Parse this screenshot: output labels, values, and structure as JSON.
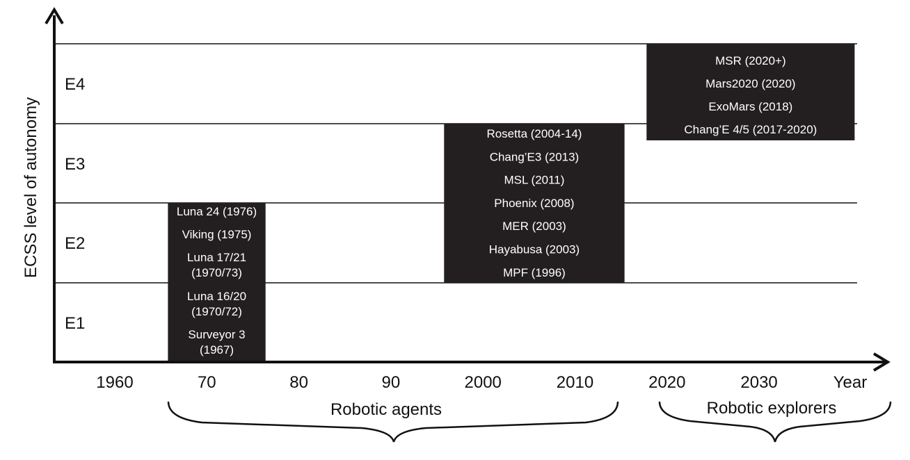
{
  "y_axis_title": "ECSS level of autonomy",
  "levels": [
    "E1",
    "E2",
    "E3",
    "E4"
  ],
  "x_axis": {
    "ticks": [
      "1960",
      "70",
      "80",
      "90",
      "2000",
      "2010",
      "2020",
      "2030"
    ],
    "end_label": "Year"
  },
  "groups": [
    {
      "label": "Robotic agents"
    },
    {
      "label": "Robotic explorers"
    }
  ],
  "blocks": [
    {
      "name": "block-early-missions",
      "start_year": 1966,
      "end_year": 1976,
      "level_low": 1,
      "level_high": 2,
      "missions": [
        [
          "Luna 24 (1976)"
        ],
        [
          "Viking (1975)"
        ],
        [
          "Luna 17/21",
          "(1970/73)"
        ],
        [
          "Luna 16/20",
          "(1970/72)"
        ],
        [
          "Surveyor 3",
          "(1967)"
        ]
      ]
    },
    {
      "name": "block-recent-missions",
      "start_year": 1996,
      "end_year": 2015,
      "level_low": 2,
      "level_high": 3,
      "missions": [
        [
          "Rosetta (2004-14)"
        ],
        [
          "Chang’E3 (2013)"
        ],
        [
          "MSL (2011)"
        ],
        [
          "Phoenix (2008)"
        ],
        [
          "MER (2003)"
        ],
        [
          "Hayabusa (2003)"
        ],
        [
          "MPF (1996)"
        ]
      ]
    },
    {
      "name": "block-future-missions",
      "start_year": 2018,
      "end_year": 2040,
      "level_low": 3,
      "level_high": 4,
      "missions": [
        [
          "MSR (2020+)"
        ],
        [
          "Mars2020  (2020)"
        ],
        [
          "ExoMars (2018)"
        ],
        [
          "Chang’E 4/5 (2017-2020)"
        ]
      ]
    }
  ],
  "colors": {
    "block": "#231f20",
    "block_text": "#ffffff",
    "line": "#111111"
  }
}
